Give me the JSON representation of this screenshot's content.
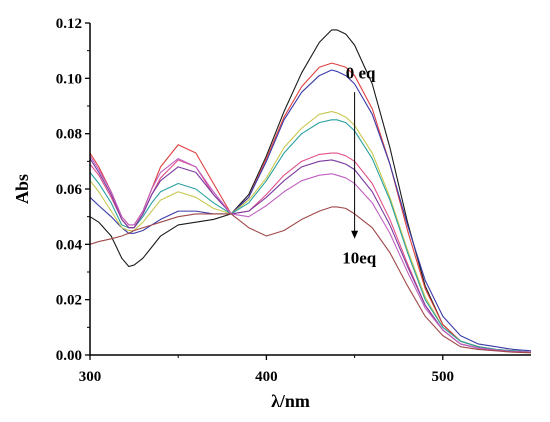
{
  "chart_data": {
    "type": "line",
    "xlabel": "λ/nm",
    "ylabel": "Abs",
    "xlim": [
      300,
      550
    ],
    "ylim": [
      0,
      0.12
    ],
    "x_ticks": [
      "300",
      "400",
      "500"
    ],
    "y_ticks": [
      "0.00",
      "0.02",
      "0.04",
      "0.06",
      "0.08",
      "0.10",
      "0.12"
    ],
    "grid": false,
    "annotations": [
      {
        "text": "0 eq",
        "x": 445,
        "y": 0.1
      },
      {
        "text": "10eq",
        "x": 443,
        "y": 0.033
      }
    ],
    "arrow": {
      "from": [
        450,
        0.095
      ],
      "to": [
        450,
        0.042
      ]
    },
    "series": [
      {
        "color": "#1a1a1a",
        "x": [
          300,
          305,
          312,
          318,
          322,
          325,
          330,
          335,
          340,
          350,
          360,
          370,
          380,
          390,
          400,
          410,
          420,
          430,
          437,
          440,
          445,
          450,
          460,
          470,
          480,
          490,
          500,
          510,
          520,
          530,
          540,
          550
        ],
        "y": [
          0.05,
          0.048,
          0.043,
          0.035,
          0.032,
          0.0325,
          0.035,
          0.039,
          0.043,
          0.047,
          0.048,
          0.049,
          0.051,
          0.058,
          0.072,
          0.088,
          0.102,
          0.113,
          0.1175,
          0.1175,
          0.116,
          0.112,
          0.098,
          0.075,
          0.048,
          0.025,
          0.011,
          0.005,
          0.003,
          0.002,
          0.0015,
          0.001
        ]
      },
      {
        "color": "#e04040",
        "x": [
          300,
          305,
          312,
          318,
          322,
          325,
          330,
          335,
          340,
          350,
          360,
          370,
          380,
          390,
          400,
          410,
          420,
          430,
          437,
          440,
          445,
          450,
          460,
          470,
          480,
          490,
          500,
          510,
          520,
          530,
          540,
          550
        ],
        "y": [
          0.073,
          0.068,
          0.059,
          0.05,
          0.047,
          0.047,
          0.052,
          0.06,
          0.068,
          0.076,
          0.073,
          0.062,
          0.051,
          0.057,
          0.071,
          0.086,
          0.097,
          0.104,
          0.1055,
          0.105,
          0.104,
          0.101,
          0.089,
          0.069,
          0.045,
          0.024,
          0.011,
          0.005,
          0.003,
          0.002,
          0.0015,
          0.001
        ]
      },
      {
        "color": "#3a3aa8",
        "x": [
          300,
          305,
          312,
          318,
          322,
          325,
          330,
          335,
          340,
          350,
          360,
          370,
          380,
          390,
          400,
          410,
          420,
          430,
          437,
          440,
          445,
          450,
          460,
          470,
          480,
          490,
          500,
          510,
          520,
          530,
          540,
          550
        ],
        "y": [
          0.057,
          0.054,
          0.05,
          0.046,
          0.044,
          0.044,
          0.045,
          0.047,
          0.049,
          0.052,
          0.052,
          0.051,
          0.051,
          0.057,
          0.07,
          0.085,
          0.095,
          0.101,
          0.103,
          0.1025,
          0.101,
          0.098,
          0.087,
          0.069,
          0.047,
          0.027,
          0.014,
          0.007,
          0.004,
          0.003,
          0.002,
          0.0015
        ]
      },
      {
        "color": "#c8c850",
        "x": [
          300,
          305,
          312,
          318,
          322,
          325,
          330,
          335,
          340,
          350,
          360,
          370,
          380,
          390,
          400,
          410,
          420,
          430,
          437,
          440,
          445,
          450,
          460,
          470,
          480,
          490,
          500,
          510,
          520,
          530,
          540,
          550
        ],
        "y": [
          0.063,
          0.059,
          0.052,
          0.046,
          0.045,
          0.045,
          0.048,
          0.052,
          0.056,
          0.059,
          0.057,
          0.053,
          0.051,
          0.056,
          0.064,
          0.075,
          0.082,
          0.087,
          0.088,
          0.0875,
          0.086,
          0.083,
          0.073,
          0.057,
          0.038,
          0.021,
          0.01,
          0.005,
          0.003,
          0.002,
          0.0015,
          0.001
        ]
      },
      {
        "color": "#2aa0a0",
        "x": [
          300,
          305,
          312,
          318,
          322,
          325,
          330,
          335,
          340,
          350,
          360,
          370,
          380,
          390,
          400,
          410,
          420,
          430,
          437,
          440,
          445,
          450,
          460,
          470,
          480,
          490,
          500,
          510,
          520,
          530,
          540,
          550
        ],
        "y": [
          0.066,
          0.062,
          0.055,
          0.047,
          0.046,
          0.046,
          0.05,
          0.055,
          0.059,
          0.062,
          0.06,
          0.055,
          0.051,
          0.055,
          0.063,
          0.073,
          0.08,
          0.084,
          0.085,
          0.085,
          0.084,
          0.081,
          0.071,
          0.056,
          0.037,
          0.02,
          0.01,
          0.005,
          0.003,
          0.002,
          0.0015,
          0.001
        ]
      },
      {
        "color": "#e0508a",
        "x": [
          300,
          305,
          312,
          318,
          322,
          325,
          330,
          335,
          340,
          350,
          360,
          370,
          380,
          390,
          400,
          410,
          420,
          430,
          437,
          440,
          445,
          450,
          460,
          470,
          480,
          490,
          500,
          510,
          520,
          530,
          540,
          550
        ],
        "y": [
          0.069,
          0.065,
          0.057,
          0.049,
          0.046,
          0.046,
          0.051,
          0.058,
          0.064,
          0.0705,
          0.068,
          0.058,
          0.051,
          0.052,
          0.058,
          0.065,
          0.07,
          0.0725,
          0.073,
          0.073,
          0.072,
          0.07,
          0.062,
          0.049,
          0.033,
          0.018,
          0.009,
          0.004,
          0.0025,
          0.0018,
          0.0012,
          0.001
        ]
      },
      {
        "color": "#7a3aa0",
        "x": [
          300,
          305,
          312,
          318,
          322,
          325,
          330,
          335,
          340,
          350,
          360,
          370,
          380,
          390,
          400,
          410,
          420,
          430,
          437,
          440,
          445,
          450,
          460,
          470,
          480,
          490,
          500,
          510,
          520,
          530,
          540,
          550
        ],
        "y": [
          0.071,
          0.066,
          0.058,
          0.049,
          0.046,
          0.046,
          0.051,
          0.058,
          0.063,
          0.068,
          0.066,
          0.058,
          0.051,
          0.052,
          0.057,
          0.063,
          0.068,
          0.07,
          0.0705,
          0.07,
          0.069,
          0.067,
          0.059,
          0.047,
          0.032,
          0.018,
          0.009,
          0.004,
          0.0025,
          0.0018,
          0.0012,
          0.001
        ]
      },
      {
        "color": "#c060c0",
        "x": [
          300,
          305,
          312,
          318,
          322,
          325,
          330,
          335,
          340,
          350,
          360,
          370,
          380,
          390,
          400,
          410,
          420,
          430,
          437,
          440,
          445,
          450,
          460,
          470,
          480,
          490,
          500,
          510,
          520,
          530,
          540,
          550
        ],
        "y": [
          0.072,
          0.067,
          0.059,
          0.05,
          0.047,
          0.047,
          0.052,
          0.06,
          0.066,
          0.071,
          0.068,
          0.059,
          0.051,
          0.05,
          0.054,
          0.059,
          0.063,
          0.065,
          0.0655,
          0.065,
          0.064,
          0.062,
          0.055,
          0.044,
          0.03,
          0.017,
          0.009,
          0.004,
          0.0025,
          0.0018,
          0.0012,
          0.001
        ]
      },
      {
        "color": "#a04848",
        "x": [
          300,
          305,
          312,
          318,
          322,
          325,
          330,
          335,
          340,
          350,
          360,
          370,
          380,
          390,
          400,
          410,
          420,
          430,
          437,
          440,
          445,
          450,
          460,
          470,
          480,
          490,
          500,
          510,
          520,
          530,
          540,
          550
        ],
        "y": [
          0.04,
          0.041,
          0.042,
          0.043,
          0.044,
          0.045,
          0.046,
          0.047,
          0.048,
          0.05,
          0.051,
          0.051,
          0.051,
          0.046,
          0.043,
          0.045,
          0.049,
          0.052,
          0.0535,
          0.0535,
          0.053,
          0.051,
          0.046,
          0.037,
          0.025,
          0.014,
          0.007,
          0.003,
          0.002,
          0.0015,
          0.001,
          0.0008
        ]
      }
    ]
  }
}
